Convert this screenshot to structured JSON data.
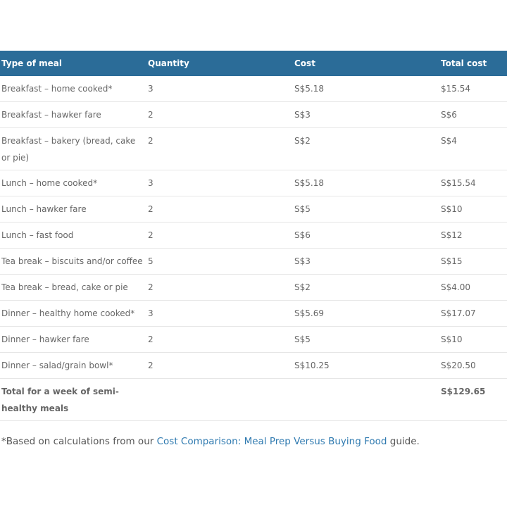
{
  "table": {
    "headers": [
      "Type of meal",
      "Quantity",
      "Cost",
      "Total cost"
    ],
    "rows": [
      [
        "Breakfast – home cooked*",
        "3",
        "S$5.18",
        "$15.54"
      ],
      [
        "Breakfast – hawker fare",
        "2",
        "S$3",
        "S$6"
      ],
      [
        "Breakfast – bakery (bread, cake or pie)",
        "2",
        "S$2",
        "S$4"
      ],
      [
        "Lunch – home cooked*",
        "3",
        "S$5.18",
        "S$15.54"
      ],
      [
        "Lunch – hawker fare",
        "2",
        "S$5",
        "S$10"
      ],
      [
        "Lunch – fast food",
        "2",
        "S$6",
        "S$12"
      ],
      [
        "Tea break – biscuits and/or coffee",
        "5",
        "S$3",
        "S$15"
      ],
      [
        "Tea break – bread, cake or pie",
        "2",
        "S$2",
        "S$4.00"
      ],
      [
        "Dinner – healthy home cooked*",
        "3",
        "S$5.69",
        "S$17.07"
      ],
      [
        "Dinner – hawker fare",
        "2",
        "S$5",
        "S$10"
      ],
      [
        "Dinner – salad/grain bowl*",
        "2",
        "S$10.25",
        "S$20.50"
      ]
    ],
    "total": {
      "label": "Total for a week of semi-healthy meals",
      "value": "S$129.65"
    }
  },
  "footnote": {
    "prefix": "*Based on calculations from our ",
    "link": "Cost Comparison: Meal Prep Versus Buying Food",
    "suffix": " guide."
  },
  "colors": {
    "header_bg": "#2b6c98",
    "link": "#2f7ab0"
  }
}
